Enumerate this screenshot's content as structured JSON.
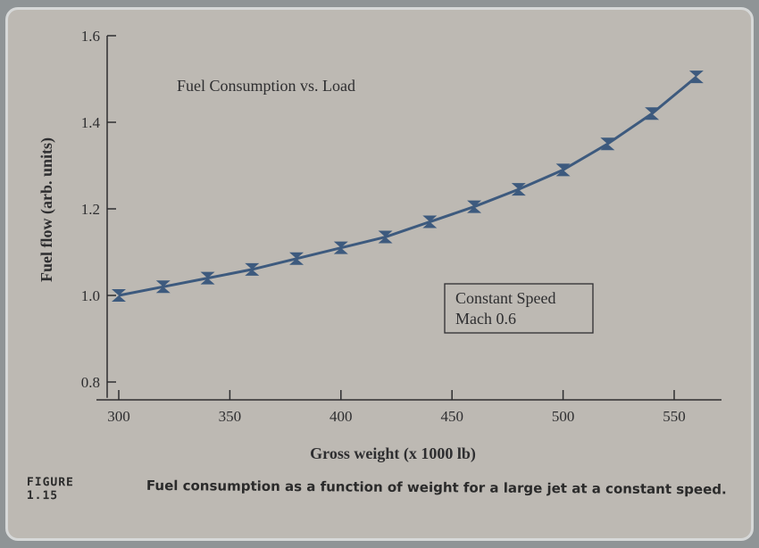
{
  "chart_data": {
    "type": "line",
    "title": "Fuel Consumption vs. Load",
    "xlabel": "Gross weight (x 1000 lb)",
    "ylabel": "Fuel flow (arb. units)",
    "xlim": [
      290,
      575
    ],
    "ylim": [
      0.78,
      1.6
    ],
    "xticks": [
      300,
      350,
      400,
      450,
      500,
      550
    ],
    "yticks": [
      0.8,
      1.0,
      1.2,
      1.4,
      1.6
    ],
    "xtick_labels": [
      "300",
      "350",
      "400",
      "450",
      "500",
      "550"
    ],
    "ytick_labels": [
      "0.8",
      "1.0",
      "1.2",
      "1.4",
      "1.6"
    ],
    "grid": false,
    "annotation": [
      "Constant Speed",
      "Mach 0.6"
    ],
    "line_color": "#3d5a7e",
    "marker": "error-bar",
    "x": [
      300,
      320,
      340,
      360,
      380,
      400,
      420,
      440,
      460,
      480,
      500,
      520,
      540,
      560
    ],
    "y": [
      1.0,
      1.02,
      1.04,
      1.06,
      1.085,
      1.11,
      1.135,
      1.17,
      1.205,
      1.245,
      1.29,
      1.35,
      1.42,
      1.505
    ]
  },
  "caption": {
    "label": "FIGURE 1.15",
    "text": "Fuel consumption as a function of weight for a large jet at a constant speed."
  }
}
